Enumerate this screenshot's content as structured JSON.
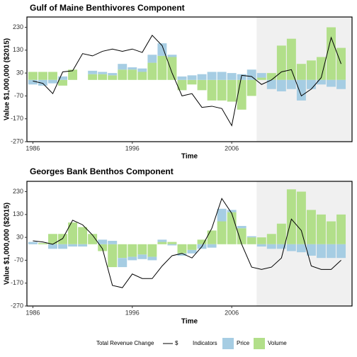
{
  "chart_data": [
    {
      "type": "bar",
      "title": "Gulf of Maine Benthivores Component",
      "x_label": "Time",
      "y_label": "Value $1,000,000 ($2015)",
      "x": [
        1986,
        1987,
        1988,
        1989,
        1990,
        1991,
        1992,
        1993,
        1994,
        1995,
        1996,
        1997,
        1998,
        1999,
        2000,
        2001,
        2002,
        2003,
        2004,
        2005,
        2006,
        2007,
        2008,
        2009,
        2010,
        2011,
        2012,
        2013,
        2014,
        2015,
        2016,
        2017
      ],
      "series": [
        {
          "name": "Price",
          "color": "#a6cde3",
          "values": [
            -20,
            -25,
            -15,
            15,
            0,
            0,
            15,
            10,
            10,
            25,
            10,
            15,
            35,
            55,
            10,
            15,
            20,
            25,
            35,
            35,
            30,
            25,
            45,
            20,
            -40,
            -50,
            -40,
            -90,
            -40,
            -20,
            -30,
            -40
          ]
        },
        {
          "name": "Volume",
          "color": "#b2df8a",
          "values": [
            35,
            35,
            35,
            -25,
            45,
            0,
            25,
            25,
            20,
            45,
            45,
            35,
            75,
            105,
            100,
            -45,
            -20,
            -45,
            -90,
            -90,
            -95,
            -130,
            -70,
            10,
            30,
            150,
            180,
            70,
            85,
            100,
            230,
            140
          ]
        },
        {
          "name": "$",
          "type": "line",
          "color": "#000000",
          "values": [
            -5,
            -15,
            -60,
            35,
            40,
            115,
            105,
            125,
            135,
            125,
            135,
            120,
            195,
            150,
            30,
            -70,
            -60,
            -120,
            -115,
            -125,
            -200,
            20,
            15,
            -20,
            0,
            35,
            45,
            -70,
            -40,
            10,
            185,
            70
          ]
        }
      ],
      "xlim": [
        1985.4,
        2018.1
      ],
      "ylim": [
        -270,
        275
      ],
      "xticks": [
        1986,
        1996,
        2006
      ],
      "yticks": [
        -270,
        -170,
        -70,
        30,
        130,
        230
      ],
      "shaded_from": 2008.5
    },
    {
      "type": "bar",
      "title": "Georges Bank Benthos Component",
      "x_label": "Time",
      "y_label": "Value $1,000,000 ($2015)",
      "x": [
        1986,
        1987,
        1988,
        1989,
        1990,
        1991,
        1992,
        1993,
        1994,
        1995,
        1996,
        1997,
        1998,
        1999,
        2000,
        2001,
        2002,
        2003,
        2004,
        2005,
        2006,
        2007,
        2008,
        2009,
        2010,
        2011,
        2012,
        2013,
        2014,
        2015,
        2016,
        2017
      ],
      "series": [
        {
          "name": "Price",
          "color": "#a6cde3",
          "values": [
            10,
            0,
            -20,
            -20,
            -10,
            -10,
            0,
            20,
            15,
            -40,
            -15,
            -20,
            -15,
            10,
            -5,
            -10,
            -15,
            -20,
            -15,
            55,
            10,
            10,
            5,
            -10,
            -20,
            -20,
            -30,
            -35,
            -50,
            -60,
            -60,
            -60
          ]
        },
        {
          "name": "Volume",
          "color": "#b2df8a",
          "values": [
            0,
            5,
            45,
            45,
            95,
            75,
            45,
            -30,
            -100,
            -60,
            -55,
            -45,
            -55,
            10,
            10,
            -40,
            -25,
            20,
            60,
            100,
            140,
            70,
            30,
            30,
            45,
            90,
            240,
            230,
            150,
            130,
            100,
            130
          ]
        },
        {
          "name": "$",
          "type": "line",
          "color": "#000000",
          "values": [
            15,
            10,
            0,
            25,
            105,
            85,
            40,
            -20,
            -180,
            -190,
            -130,
            -150,
            -150,
            -95,
            -50,
            -40,
            -60,
            -10,
            70,
            200,
            135,
            0,
            -100,
            -110,
            -100,
            -60,
            110,
            60,
            -95,
            -110,
            -110,
            -70
          ]
        }
      ],
      "xlim": [
        1985.4,
        2018.1
      ],
      "ylim": [
        -270,
        275
      ],
      "xticks": [
        1986,
        1996,
        2006
      ],
      "yticks": [
        -270,
        -170,
        -70,
        30,
        130,
        230
      ],
      "shaded_from": 2008.5
    }
  ],
  "legend": {
    "line_title": "Total Revenue Change",
    "bar_title": "Indicators"
  }
}
